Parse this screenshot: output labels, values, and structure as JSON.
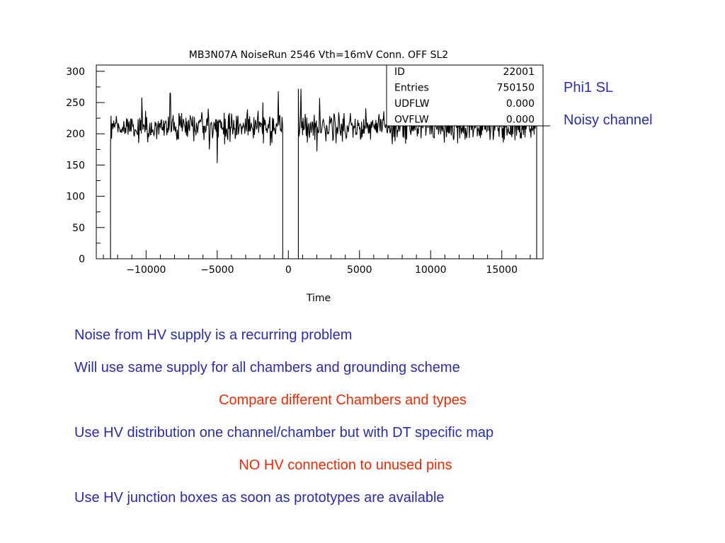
{
  "slide": {
    "side_labels": [
      "Phi1 SL",
      "Noisy channel"
    ],
    "bullets": [
      {
        "text": "Noise from HV supply is a recurring problem",
        "color": "#2b2bb0"
      },
      {
        "text": "Will use same supply for all chambers and grounding scheme",
        "color": "#2b2bb0"
      },
      {
        "text": "Compare different Chambers and types",
        "color": "#ee2a00"
      },
      {
        "text": "Use HV distribution one channel/chamber but with DT specific map",
        "color": "#2b2bb0"
      },
      {
        "text": "NO HV connection to unused pins",
        "color": "#ee2a00"
      },
      {
        "text": "Use HV junction boxes as soon as prototypes are available",
        "color": "#2b2bb0"
      }
    ]
  },
  "chart_data": {
    "type": "line",
    "title": "MB3N07A NoiseRun 2546 Vth=16mV Conn. OFF SL2",
    "xlabel": "Time",
    "ylabel": "",
    "xlim": [
      -13500,
      17900
    ],
    "ylim": [
      0,
      310
    ],
    "xticks": [
      -10000,
      -5000,
      0,
      5000,
      10000,
      15000
    ],
    "xtick_labels": [
      "−10000",
      "−5000",
      "0",
      "5000",
      "10000",
      "15000"
    ],
    "yticks": [
      0,
      50,
      100,
      150,
      200,
      250,
      300
    ],
    "ytick_labels": [
      "0",
      "50",
      "100",
      "150",
      "200",
      "250",
      "300"
    ],
    "grid": false,
    "stats_box": {
      "rows": [
        {
          "label": "ID",
          "value": "22001"
        },
        {
          "label": "Entries",
          "value": "750150"
        },
        {
          "label": "UDFLW",
          "value": "0.000"
        },
        {
          "label": "OVFLW",
          "value": "0.000"
        }
      ]
    },
    "segments": [
      {
        "x_range": [
          -12500,
          -400
        ],
        "edge_start": 0,
        "edge_end": 0,
        "baseline": 212,
        "noise_sd": 12,
        "spikes": [
          {
            "x": -10300,
            "y": 258
          },
          {
            "x": -8300,
            "y": 265
          },
          {
            "x": -5000,
            "y": 153
          },
          {
            "x": -700,
            "y": 268
          }
        ],
        "start_value": 178
      },
      {
        "x_range": [
          700,
          17450
        ],
        "edge_start": 0,
        "edge_end": 0,
        "baseline": 212,
        "noise_sd": 12,
        "spikes": [
          {
            "x": 900,
            "y": 272
          },
          {
            "x": 2000,
            "y": 172
          }
        ],
        "start_value": 272
      }
    ]
  }
}
